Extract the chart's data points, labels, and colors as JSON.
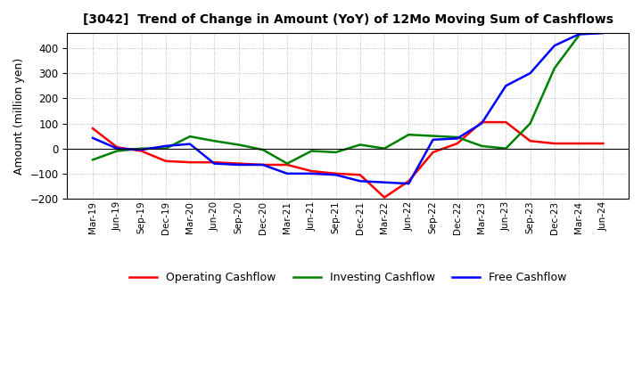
{
  "title": "[3042]  Trend of Change in Amount (YoY) of 12Mo Moving Sum of Cashflows",
  "ylabel": "Amount (million yen)",
  "x_labels": [
    "Mar-19",
    "Jun-19",
    "Sep-19",
    "Dec-19",
    "Mar-20",
    "Jun-20",
    "Sep-20",
    "Dec-20",
    "Mar-21",
    "Jun-21",
    "Sep-21",
    "Dec-21",
    "Mar-22",
    "Jun-22",
    "Sep-22",
    "Dec-22",
    "Mar-23",
    "Jun-23",
    "Sep-23",
    "Dec-23",
    "Mar-24",
    "Jun-24"
  ],
  "operating": [
    80,
    5,
    -10,
    -50,
    -55,
    -55,
    -60,
    -65,
    -65,
    -90,
    -100,
    -105,
    -195,
    -130,
    -15,
    20,
    105,
    105,
    30,
    20,
    20,
    20
  ],
  "investing": [
    -45,
    -10,
    0,
    0,
    48,
    30,
    15,
    -5,
    -60,
    -10,
    -15,
    15,
    0,
    55,
    50,
    45,
    10,
    0,
    100,
    320,
    450,
    null
  ],
  "free": [
    42,
    0,
    -5,
    10,
    18,
    -60,
    -65,
    -65,
    -100,
    -100,
    -105,
    -130,
    -135,
    -140,
    35,
    40,
    100,
    250,
    300,
    410,
    455,
    460
  ],
  "operating_color": "#ff0000",
  "investing_color": "#008000",
  "free_color": "#0000ff",
  "ylim": [
    -200,
    460
  ],
  "yticks": [
    -200,
    -100,
    0,
    100,
    200,
    300,
    400
  ],
  "background_color": "#ffffff"
}
